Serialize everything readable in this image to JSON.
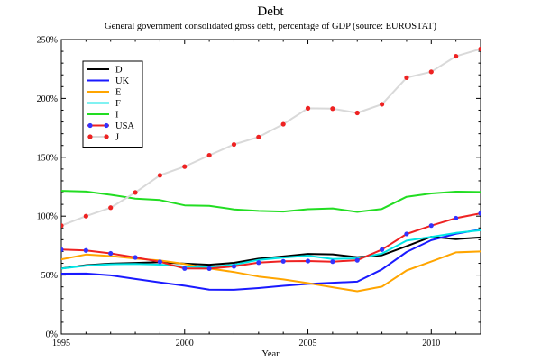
{
  "chart_data": {
    "type": "line",
    "title": "Debt",
    "subtitle": "General government consolidated gross debt, percentage of GDP (source: EUROSTAT)",
    "xlabel": "Year",
    "ylabel": "",
    "xlim": [
      1995,
      2012
    ],
    "ylim": [
      0,
      250
    ],
    "xticks": [
      1995,
      2000,
      2005,
      2010
    ],
    "xtick_labels": [
      "1995",
      "2000",
      "2005",
      "2010"
    ],
    "yticks": [
      0,
      50,
      100,
      150,
      200,
      250
    ],
    "ytick_labels": [
      "0%",
      "50%",
      "100%",
      "150%",
      "200%",
      "250%"
    ],
    "grid": false,
    "legend_position": "top-left",
    "x": [
      1995,
      1996,
      1997,
      1998,
      1999,
      2000,
      2001,
      2002,
      2003,
      2004,
      2005,
      2006,
      2007,
      2008,
      2009,
      2010,
      2011,
      2012
    ],
    "series": [
      {
        "name": "D",
        "color": "#000000",
        "marker": "none",
        "values": [
          55.6,
          58.4,
          59.7,
          60.3,
          60.9,
          59.7,
          58.8,
          60.4,
          63.9,
          65.8,
          68.0,
          67.6,
          65.2,
          66.8,
          74.5,
          82.5,
          80.5,
          81.9
        ]
      },
      {
        "name": "UK",
        "color": "#1a1aff",
        "marker": "none",
        "values": [
          51.2,
          51.3,
          49.8,
          46.7,
          43.7,
          41.0,
          37.7,
          37.5,
          39.0,
          40.9,
          42.5,
          43.5,
          44.4,
          54.8,
          69.6,
          79.6,
          85.0,
          88.7
        ]
      },
      {
        "name": "E",
        "color": "#ffa500",
        "marker": "none",
        "values": [
          63.3,
          67.4,
          66.1,
          64.1,
          62.4,
          59.4,
          55.6,
          52.6,
          48.8,
          46.3,
          43.2,
          39.7,
          36.3,
          40.2,
          53.9,
          61.5,
          69.3,
          70.0
        ]
      },
      {
        "name": "F",
        "color": "#00e5e5",
        "marker": "none",
        "values": [
          55.5,
          58.0,
          59.2,
          59.4,
          58.9,
          57.3,
          56.9,
          58.8,
          62.9,
          64.9,
          66.4,
          63.7,
          64.2,
          68.2,
          79.2,
          82.4,
          85.8,
          88.0
        ]
      },
      {
        "name": "I",
        "color": "#22dd22",
        "marker": "none",
        "values": [
          121.5,
          120.9,
          118.1,
          114.9,
          113.7,
          109.2,
          108.8,
          105.7,
          104.4,
          103.9,
          105.9,
          106.6,
          103.6,
          106.1,
          116.4,
          119.3,
          120.8,
          120.5
        ]
      },
      {
        "name": "USA",
        "color": "#ee2222",
        "marker": "dot-blue",
        "values": [
          71.6,
          70.9,
          68.4,
          65.0,
          61.3,
          55.6,
          55.5,
          57.4,
          60.6,
          61.7,
          61.9,
          61.4,
          62.6,
          71.6,
          84.9,
          92.0,
          98.3,
          102.4
        ]
      },
      {
        "name": "J",
        "color": "#d9d9d9",
        "marker": "dot-red",
        "values": [
          92.0,
          100.0,
          107.2,
          120.1,
          134.7,
          142.1,
          151.7,
          160.9,
          167.2,
          178.1,
          191.6,
          191.3,
          187.7,
          195.0,
          217.6,
          222.6,
          235.8,
          242.0
        ]
      }
    ]
  }
}
